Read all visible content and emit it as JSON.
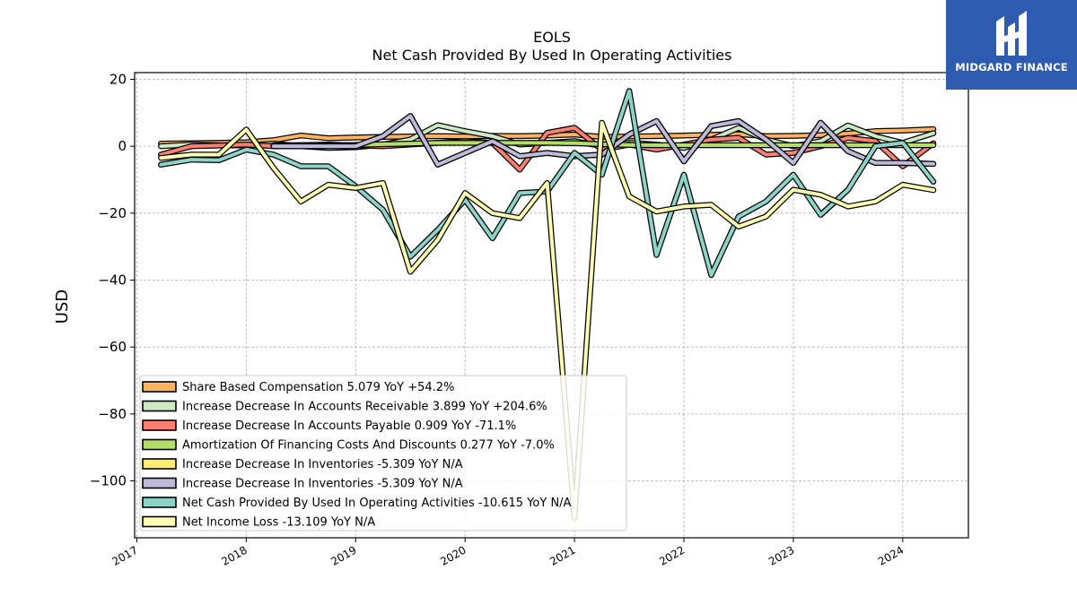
{
  "brand": {
    "name": "MIDGARD FINANCE",
    "bg_color": "#2d5bb0"
  },
  "chart_data": {
    "type": "line",
    "title": "EOLS",
    "subtitle": "Net Cash Provided By Used In Operating Activities",
    "ylabel": "USD",
    "xlabel": "",
    "ylim": [
      -117,
      22
    ],
    "xlim": [
      2016.98,
      2024.6
    ],
    "yticks": [
      20,
      0,
      -20,
      -40,
      -60,
      -80,
      -100
    ],
    "ytick_labels": [
      "20",
      "0",
      "−20",
      "−40",
      "−60",
      "−80",
      "−100"
    ],
    "xticks": [
      2017,
      2018,
      2019,
      2020,
      2021,
      2022,
      2023,
      2024
    ],
    "xtick_labels": [
      "2017",
      "2018",
      "2019",
      "2020",
      "2021",
      "2022",
      "2023",
      "2024"
    ],
    "grid": true,
    "legend_position": "lower-left",
    "series": [
      {
        "name": "Share Based Compensation",
        "legend": "Share Based Compensation  5.079 YoY +54.2%",
        "color": "#fdb462",
        "x": [
          2017.22,
          2017.5,
          2017.75,
          2018.0,
          2018.25,
          2018.5,
          2018.75,
          2019.0,
          2019.25,
          2019.5,
          2019.75,
          2020.0,
          2020.25,
          2020.5,
          2020.75,
          2021.0,
          2021.25,
          2021.5,
          2021.75,
          2022.0,
          2022.25,
          2022.5,
          2022.75,
          2023.0,
          2023.25,
          2023.5,
          2023.75,
          2024.0,
          2024.28
        ],
        "y": [
          0.8,
          0.9,
          1.0,
          1.2,
          1.8,
          3.2,
          2.4,
          2.6,
          2.8,
          2.9,
          3.0,
          2.9,
          3.1,
          3.0,
          3.2,
          3.5,
          2.8,
          2.9,
          3.0,
          3.2,
          3.4,
          3.6,
          3.0,
          3.1,
          3.3,
          3.8,
          4.5,
          4.7,
          5.1
        ]
      },
      {
        "name": "Increase Decrease In Accounts Receivable",
        "legend": "Increase Decrease In Accounts Receivable  3.899 YoY +204.6%",
        "color": "#ccebc5",
        "x": [
          2017.22,
          2017.5,
          2017.75,
          2018.0,
          2018.25,
          2018.5,
          2018.75,
          2019.0,
          2019.25,
          2019.5,
          2019.75,
          2020.0,
          2020.25,
          2020.5,
          2020.75,
          2021.0,
          2021.25,
          2021.5,
          2021.75,
          2022.0,
          2022.25,
          2022.5,
          2022.75,
          2023.0,
          2023.25,
          2023.5,
          2023.75,
          2024.0,
          2024.28
        ],
        "y": [
          0.0,
          0.5,
          0.3,
          0.2,
          0.8,
          0.0,
          -0.5,
          -0.3,
          0.5,
          2.0,
          6.3,
          4.5,
          3.0,
          0.5,
          1.0,
          1.5,
          0.0,
          1.0,
          0.5,
          -0.5,
          2.0,
          5.5,
          2.0,
          0.0,
          1.5,
          6.2,
          3.0,
          1.0,
          3.9
        ]
      },
      {
        "name": "Increase Decrease In Accounts Payable",
        "legend": "Increase Decrease In Accounts Payable  0.909 YoY -71.1%",
        "color": "#fb8072",
        "x": [
          2017.22,
          2017.5,
          2017.75,
          2018.0,
          2018.25,
          2018.5,
          2018.75,
          2019.0,
          2019.25,
          2019.5,
          2019.75,
          2020.0,
          2020.25,
          2020.5,
          2020.75,
          2021.0,
          2021.25,
          2021.5,
          2021.75,
          2022.0,
          2022.25,
          2022.5,
          2022.75,
          2023.0,
          2023.25,
          2023.5,
          2023.75,
          2024.0,
          2024.28
        ],
        "y": [
          -2.5,
          0.0,
          0.2,
          0.5,
          0.0,
          0.3,
          0.5,
          0.2,
          0.0,
          0.5,
          1.0,
          1.5,
          1.0,
          -7.0,
          4.0,
          5.5,
          -1.0,
          0.5,
          -1.0,
          0.5,
          2.0,
          2.5,
          -2.5,
          -2.0,
          0.0,
          2.5,
          1.5,
          -6.0,
          0.9
        ]
      },
      {
        "name": "Amortization Of Financing Costs And Discounts",
        "legend": "Amortization Of Financing Costs And Discounts  0.277 YoY -7.0%",
        "color": "#b3de69",
        "x": [
          2018.25,
          2018.5,
          2018.75,
          2019.0,
          2019.25,
          2019.5,
          2019.75,
          2020.0,
          2020.25,
          2020.5,
          2020.75,
          2021.0,
          2021.25,
          2021.5,
          2021.75,
          2022.0,
          2022.25,
          2022.5,
          2022.75,
          2023.0,
          2023.25,
          2023.5,
          2023.75,
          2024.0,
          2024.28
        ],
        "y": [
          0.3,
          0.3,
          0.3,
          0.4,
          0.6,
          0.8,
          1.0,
          1.0,
          1.0,
          1.0,
          1.0,
          0.9,
          0.6,
          0.4,
          0.3,
          0.3,
          0.3,
          0.3,
          0.3,
          0.3,
          0.3,
          0.3,
          0.3,
          0.3,
          0.3
        ]
      },
      {
        "name": "Increase Decrease In Inventories",
        "legend": "Increase Decrease In Inventories  -5.309 YoY N/A",
        "color": "#ffed6f",
        "x": [
          2018.25,
          2018.5,
          2018.75,
          2019.0,
          2019.25,
          2019.5,
          2019.75,
          2020.0,
          2020.25,
          2020.5,
          2020.75,
          2021.0,
          2021.25,
          2021.5,
          2021.75,
          2022.0,
          2022.25,
          2022.5,
          2022.75,
          2023.0,
          2023.25,
          2023.5,
          2023.75,
          2024.0,
          2024.28
        ],
        "y": [
          0.0,
          0.0,
          0.0,
          0.0,
          3.0,
          9.0,
          -5.5,
          -2.0,
          1.5,
          -3.0,
          -2.0,
          -3.0,
          -2.5,
          3.5,
          7.5,
          -4.5,
          6.0,
          7.5,
          2.0,
          -5.0,
          7.0,
          -1.5,
          -5.0,
          -5.0,
          -5.3
        ]
      },
      {
        "name": "Increase Decrease In Inventories",
        "legend": "Increase Decrease In Inventories  -5.309 YoY N/A",
        "color": "#bebada",
        "x": [
          2018.25,
          2018.5,
          2018.75,
          2019.0,
          2019.25,
          2019.5,
          2019.75,
          2020.0,
          2020.25,
          2020.5,
          2020.75,
          2021.0,
          2021.25,
          2021.5,
          2021.75,
          2022.0,
          2022.25,
          2022.5,
          2022.75,
          2023.0,
          2023.25,
          2023.5,
          2023.75,
          2024.0,
          2024.28
        ],
        "y": [
          0.0,
          0.0,
          0.0,
          0.0,
          3.0,
          9.0,
          -5.5,
          -2.0,
          1.5,
          -3.0,
          -2.0,
          -3.0,
          -2.5,
          3.5,
          7.5,
          -4.5,
          6.0,
          7.5,
          2.0,
          -5.0,
          7.0,
          -1.5,
          -5.0,
          -5.0,
          -5.3
        ]
      },
      {
        "name": "Net Cash Provided By Used In Operating Activities",
        "legend": "Net Cash Provided By Used In Operating Activities  -10.615 YoY N/A",
        "color": "#8dd3c7",
        "x": [
          2017.22,
          2017.5,
          2017.75,
          2018.0,
          2018.25,
          2018.5,
          2018.75,
          2019.0,
          2019.25,
          2019.5,
          2019.75,
          2020.0,
          2020.25,
          2020.5,
          2020.75,
          2021.0,
          2021.25,
          2021.5,
          2021.75,
          2022.0,
          2022.25,
          2022.5,
          2022.75,
          2023.0,
          2023.25,
          2023.5,
          2023.75,
          2024.0,
          2024.28
        ],
        "y": [
          -5.5,
          -4.0,
          -4.2,
          -1.0,
          -2.5,
          -6.0,
          -6.0,
          -12.0,
          -19.0,
          -33.0,
          -25.0,
          -16.0,
          -27.5,
          -14.0,
          -13.5,
          -2.0,
          -8.5,
          16.5,
          -32.5,
          -8.5,
          -38.5,
          -21.0,
          -16.5,
          -8.5,
          -20.5,
          -13.0,
          0.0,
          1.0,
          -10.6
        ]
      },
      {
        "name": "Net Income Loss",
        "legend": "Net Income Loss  -13.109 YoY N/A",
        "color": "#ffffb3",
        "x": [
          2017.22,
          2017.5,
          2017.75,
          2018.0,
          2018.25,
          2018.5,
          2018.75,
          2019.0,
          2019.25,
          2019.5,
          2019.75,
          2020.0,
          2020.25,
          2020.5,
          2020.75,
          2021.0,
          2021.25,
          2021.5,
          2021.75,
          2022.0,
          2022.25,
          2022.5,
          2022.75,
          2023.0,
          2023.25,
          2023.5,
          2023.75,
          2024.0,
          2024.28
        ],
        "y": [
          -3.5,
          -2.5,
          -2.5,
          5.0,
          -6.5,
          -16.5,
          -11.5,
          -12.5,
          -11.0,
          -37.5,
          -28.0,
          -14.0,
          -20.0,
          -21.5,
          -11.0,
          -111.0,
          7.0,
          -15.0,
          -19.5,
          -18.0,
          -17.5,
          -24.0,
          -21.0,
          -13.0,
          -14.5,
          -18.0,
          -16.5,
          -11.5,
          -13.1
        ]
      }
    ]
  }
}
